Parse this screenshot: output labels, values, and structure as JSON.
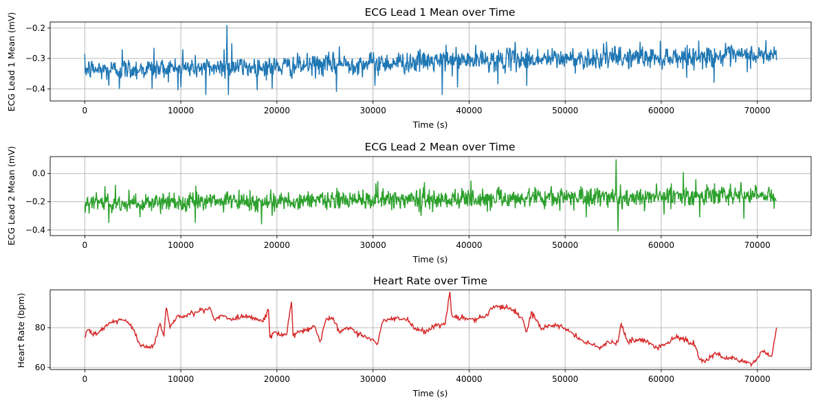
{
  "chart_data": [
    {
      "type": "line",
      "title": "ECG Lead 1 Mean over Time",
      "xlabel": "Time (s)",
      "ylabel": "ECG Lead 1 Mean (mV)",
      "xlim": [
        -3600,
        75600
      ],
      "ylim": [
        -0.44,
        -0.18
      ],
      "xticks": [
        0,
        10000,
        20000,
        30000,
        40000,
        50000,
        60000,
        70000
      ],
      "yticks": [
        -0.4,
        -0.3,
        -0.2
      ],
      "ytick_labels": [
        "−0.4",
        "−0.3",
        "−0.2"
      ],
      "grid": true,
      "color": "#1f77b4",
      "series": [
        {
          "x": [
            0,
            2000,
            4000,
            6000,
            8000,
            10000,
            12000,
            14000,
            16000,
            18000,
            20000,
            22000,
            24000,
            26000,
            28000,
            30000,
            32000,
            34000,
            36000,
            38000,
            40000,
            42000,
            44000,
            46000,
            48000,
            50000,
            52000,
            54000,
            56000,
            58000,
            60000,
            62000,
            64000,
            66000,
            68000,
            70000,
            72000
          ],
          "values": [
            -0.335,
            -0.338,
            -0.336,
            -0.334,
            -0.333,
            -0.332,
            -0.33,
            -0.328,
            -0.328,
            -0.329,
            -0.327,
            -0.325,
            -0.322,
            -0.32,
            -0.318,
            -0.316,
            -0.314,
            -0.312,
            -0.31,
            -0.308,
            -0.306,
            -0.305,
            -0.304,
            -0.303,
            -0.302,
            -0.301,
            -0.3,
            -0.299,
            -0.298,
            -0.297,
            -0.296,
            -0.295,
            -0.294,
            -0.293,
            -0.292,
            -0.291,
            -0.29
          ],
          "spikes": [
            [
              2500,
              -0.39
            ],
            [
              3600,
              -0.4
            ],
            [
              3900,
              -0.27
            ],
            [
              7000,
              -0.4
            ],
            [
              7200,
              -0.265
            ],
            [
              10000,
              -0.395
            ],
            [
              10200,
              -0.27
            ],
            [
              12600,
              -0.42
            ],
            [
              14500,
              -0.27
            ],
            [
              14800,
              -0.19
            ],
            [
              14950,
              -0.42
            ],
            [
              15300,
              -0.25
            ],
            [
              19500,
              -0.4
            ],
            [
              26200,
              -0.41
            ],
            [
              26500,
              -0.26
            ],
            [
              30200,
              -0.39
            ],
            [
              37200,
              -0.42
            ],
            [
              37600,
              -0.255
            ],
            [
              38800,
              -0.395
            ],
            [
              43000,
              -0.385
            ],
            [
              44800,
              -0.245
            ],
            [
              46000,
              -0.39
            ],
            [
              54000,
              -0.25
            ],
            [
              57800,
              -0.245
            ],
            [
              65500,
              -0.38
            ],
            [
              70900,
              -0.24
            ]
          ]
        }
      ]
    },
    {
      "type": "line",
      "title": "ECG Lead 2 Mean over Time",
      "xlabel": "Time (s)",
      "ylabel": "ECG Lead 2 Mean (mV)",
      "xlim": [
        -3600,
        75600
      ],
      "ylim": [
        -0.44,
        0.12
      ],
      "xticks": [
        0,
        10000,
        20000,
        30000,
        40000,
        50000,
        60000,
        70000
      ],
      "yticks": [
        -0.4,
        -0.2,
        0.0
      ],
      "ytick_labels": [
        "−0.4",
        "−0.2",
        "0.0"
      ],
      "grid": true,
      "color": "#2ca02c",
      "series": [
        {
          "x": [
            0,
            2000,
            4000,
            6000,
            8000,
            10000,
            12000,
            14000,
            16000,
            18000,
            20000,
            22000,
            24000,
            26000,
            28000,
            30000,
            32000,
            34000,
            36000,
            38000,
            40000,
            42000,
            44000,
            46000,
            48000,
            50000,
            52000,
            54000,
            56000,
            58000,
            60000,
            62000,
            64000,
            66000,
            68000,
            70000,
            72000
          ],
          "values": [
            -0.2,
            -0.21,
            -0.21,
            -0.21,
            -0.205,
            -0.2,
            -0.2,
            -0.2,
            -0.2,
            -0.2,
            -0.195,
            -0.195,
            -0.19,
            -0.19,
            -0.19,
            -0.185,
            -0.185,
            -0.18,
            -0.18,
            -0.18,
            -0.18,
            -0.175,
            -0.175,
            -0.175,
            -0.17,
            -0.17,
            -0.17,
            -0.17,
            -0.17,
            -0.165,
            -0.165,
            -0.165,
            -0.16,
            -0.16,
            -0.16,
            -0.155,
            -0.15
          ],
          "spikes": [
            [
              2100,
              -0.09
            ],
            [
              2500,
              -0.35
            ],
            [
              3200,
              -0.08
            ],
            [
              11500,
              -0.35
            ],
            [
              18400,
              -0.36
            ],
            [
              19500,
              -0.3
            ],
            [
              30300,
              -0.07
            ],
            [
              35000,
              -0.3
            ],
            [
              40200,
              -0.05
            ],
            [
              52200,
              -0.31
            ],
            [
              55300,
              0.1
            ],
            [
              55500,
              -0.41
            ],
            [
              59500,
              -0.07
            ],
            [
              60300,
              -0.29
            ],
            [
              62300,
              0.01
            ],
            [
              63600,
              -0.04
            ],
            [
              64000,
              -0.31
            ],
            [
              68300,
              -0.06
            ],
            [
              68600,
              -0.32
            ],
            [
              69800,
              -0.08
            ]
          ]
        }
      ]
    },
    {
      "type": "line",
      "title": "Heart Rate over Time",
      "xlabel": "Time (s)",
      "ylabel": "Heart Rate (bpm)",
      "xlim": [
        -3600,
        75600
      ],
      "ylim": [
        59,
        99
      ],
      "xticks": [
        0,
        10000,
        20000,
        30000,
        40000,
        50000,
        60000,
        70000
      ],
      "yticks": [
        60,
        80
      ],
      "ytick_labels": [
        "60",
        "80"
      ],
      "grid": true,
      "color": "#d62728",
      "series": [
        {
          "x": [
            0,
            300,
            900,
            1500,
            2500,
            3500,
            4500,
            5200,
            5500,
            6000,
            6500,
            7300,
            7800,
            8200,
            8500,
            8900,
            9500,
            10500,
            11500,
            12500,
            13000,
            13500,
            14500,
            15500,
            16500,
            17500,
            18500,
            19100,
            19300,
            19800,
            20300,
            21000,
            21500,
            21700,
            22000,
            23000,
            24000,
            24500,
            25000,
            25800,
            26500,
            27500,
            28500,
            29500,
            30500,
            31000,
            32500,
            33500,
            34500,
            35500,
            36500,
            37500,
            38000,
            38200,
            38600,
            39500,
            40500,
            41500,
            42500,
            43500,
            44500,
            45500,
            46000,
            46500,
            47500,
            48500,
            49500,
            50500,
            51500,
            52500,
            53500,
            54500,
            55500,
            55800,
            56500,
            57500,
            58500,
            59500,
            60500,
            61500,
            62500,
            63500,
            64000,
            64500,
            65500,
            66500,
            67500,
            68500,
            69500,
            70500,
            71500,
            72000
          ],
          "values": [
            75,
            79,
            76,
            78,
            82,
            84,
            83,
            78,
            73,
            71,
            70,
            72,
            82,
            76,
            90,
            80,
            85,
            86,
            88,
            89,
            90,
            84,
            86,
            84,
            86,
            85,
            83,
            89,
            75,
            78,
            76,
            77,
            93,
            76,
            77,
            79,
            80,
            73,
            83,
            85,
            78,
            80,
            77,
            75,
            72,
            83,
            85,
            84,
            79,
            78,
            81,
            82,
            98,
            86,
            85,
            85,
            84,
            85,
            90,
            91,
            89,
            85,
            78,
            88,
            79,
            81,
            81,
            78,
            74,
            72,
            70,
            73,
            73,
            82,
            73,
            74,
            73,
            70,
            72,
            75,
            74,
            71,
            64,
            63,
            67,
            65,
            65,
            63,
            62,
            68,
            66,
            80
          ]
        }
      ]
    }
  ]
}
